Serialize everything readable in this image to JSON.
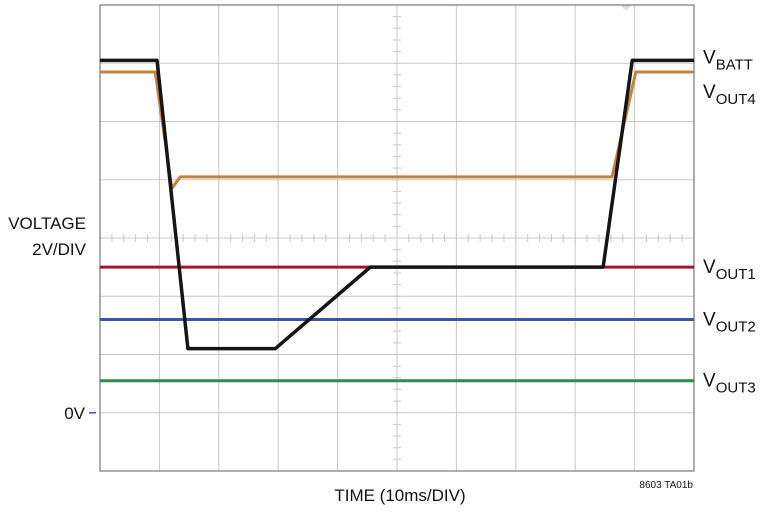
{
  "chart_data": {
    "type": "line",
    "x_label": "TIME (10ms/DIV)",
    "y_label": [
      "VOLTAGE",
      "2V/DIV"
    ],
    "zero_marker": {
      "value": 0,
      "label": "0V"
    },
    "note": "8603 TA01b",
    "xlim": [
      0,
      100
    ],
    "xticks": [
      0,
      10,
      20,
      30,
      40,
      50,
      60,
      70,
      80,
      90,
      100
    ],
    "ylim": [
      -2,
      14
    ],
    "yticks": [
      -2,
      0,
      2,
      4,
      6,
      8,
      10,
      12,
      14
    ],
    "grid": true,
    "series": [
      {
        "name": "VOUT1",
        "color": "#a3142f",
        "x": [
          0,
          100
        ],
        "values": [
          5.0,
          5.0
        ]
      },
      {
        "name": "VOUT2",
        "color": "#3b56a6",
        "x": [
          0,
          100
        ],
        "values": [
          3.2,
          3.2
        ]
      },
      {
        "name": "VOUT3",
        "color": "#2f8a4b",
        "x": [
          0,
          100
        ],
        "values": [
          1.1,
          1.1
        ]
      },
      {
        "name": "VOUT4",
        "color": "#c5823d",
        "x": [
          0,
          9.3,
          12.1,
          13.5,
          86.2,
          90.2,
          100
        ],
        "values": [
          11.7,
          11.7,
          7.7,
          8.1,
          8.1,
          11.7,
          11.7
        ]
      },
      {
        "name": "VBATT",
        "color": "#151515",
        "x": [
          0,
          9.6,
          14.8,
          29.5,
          45.5,
          84.7,
          89.6,
          100
        ],
        "values": [
          12.1,
          12.1,
          2.2,
          2.2,
          5.0,
          5.0,
          12.1,
          12.1
        ]
      }
    ]
  }
}
